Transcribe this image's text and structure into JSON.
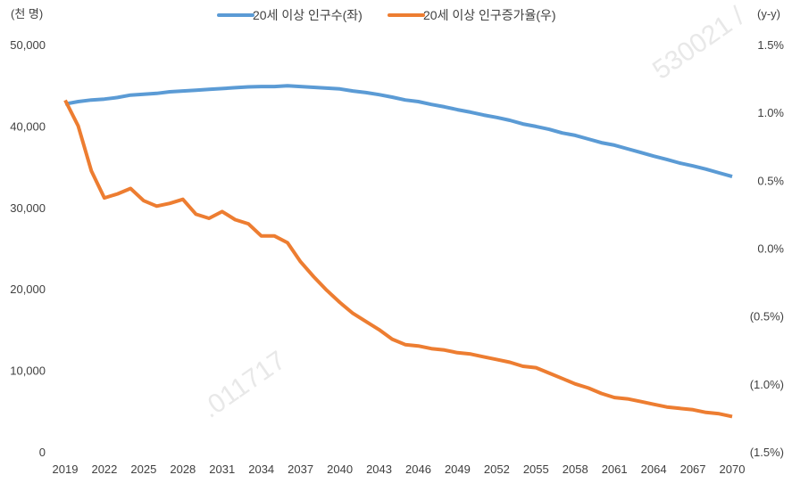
{
  "chart_data": {
    "type": "line",
    "left_axis_label": "(천 명)",
    "right_axis_label": "(y-y)",
    "left_ylim": [
      0,
      50000
    ],
    "right_ylim": [
      -1.5,
      1.5
    ],
    "left_ticks": [
      "0",
      "10,000",
      "20,000",
      "30,000",
      "40,000",
      "50,000"
    ],
    "right_ticks": [
      "(1.5%)",
      "(1.0%)",
      "(0.5%)",
      "0.0%",
      "0.5%",
      "1.0%",
      "1.5%"
    ],
    "x_ticks": [
      "2019",
      "2022",
      "2025",
      "2028",
      "2031",
      "2034",
      "2037",
      "2040",
      "2043",
      "2046",
      "2049",
      "2052",
      "2055",
      "2058",
      "2061",
      "2064",
      "2067",
      "2070"
    ],
    "x": [
      2019,
      2020,
      2021,
      2022,
      2023,
      2024,
      2025,
      2026,
      2027,
      2028,
      2029,
      2030,
      2031,
      2032,
      2033,
      2034,
      2035,
      2036,
      2037,
      2038,
      2039,
      2040,
      2041,
      2042,
      2043,
      2044,
      2045,
      2046,
      2047,
      2048,
      2049,
      2050,
      2051,
      2052,
      2053,
      2054,
      2055,
      2056,
      2057,
      2058,
      2059,
      2060,
      2061,
      2062,
      2063,
      2064,
      2065,
      2066,
      2067,
      2068,
      2069,
      2070
    ],
    "grid": false,
    "legend_position": "top",
    "series": [
      {
        "name": "20세 이상 인구수(좌)",
        "axis": "left",
        "color": "#5b9bd5",
        "values": [
          42700,
          43000,
          43200,
          43300,
          43500,
          43800,
          43900,
          44000,
          44200,
          44300,
          44400,
          44500,
          44600,
          44700,
          44800,
          44850,
          44850,
          44950,
          44850,
          44750,
          44650,
          44550,
          44300,
          44100,
          43850,
          43550,
          43200,
          43000,
          42650,
          42350,
          42000,
          41700,
          41350,
          41050,
          40700,
          40250,
          39950,
          39600,
          39150,
          38850,
          38400,
          37950,
          37650,
          37200,
          36750,
          36300,
          35900,
          35450,
          35100,
          34700,
          34250,
          33800
        ]
      },
      {
        "name": "20세 이상 인구증가율(우)",
        "axis": "right",
        "unit": "%",
        "color": "#ed7d31",
        "values": [
          1.09,
          0.9,
          0.57,
          0.37,
          0.4,
          0.44,
          0.35,
          0.31,
          0.33,
          0.36,
          0.25,
          0.22,
          0.27,
          0.21,
          0.18,
          0.09,
          0.09,
          0.04,
          -0.1,
          -0.21,
          -0.31,
          -0.4,
          -0.48,
          -0.54,
          -0.6,
          -0.67,
          -0.71,
          -0.72,
          -0.74,
          -0.75,
          -0.77,
          -0.78,
          -0.8,
          -0.82,
          -0.84,
          -0.87,
          -0.88,
          -0.92,
          -0.96,
          -1.0,
          -1.03,
          -1.07,
          -1.1,
          -1.11,
          -1.13,
          -1.15,
          -1.17,
          -1.18,
          -1.19,
          -1.21,
          -1.22,
          -1.24
        ]
      }
    ],
    "negative_tick_color": "#c00000"
  },
  "watermarks": [
    "530021 /",
    ".011717"
  ]
}
